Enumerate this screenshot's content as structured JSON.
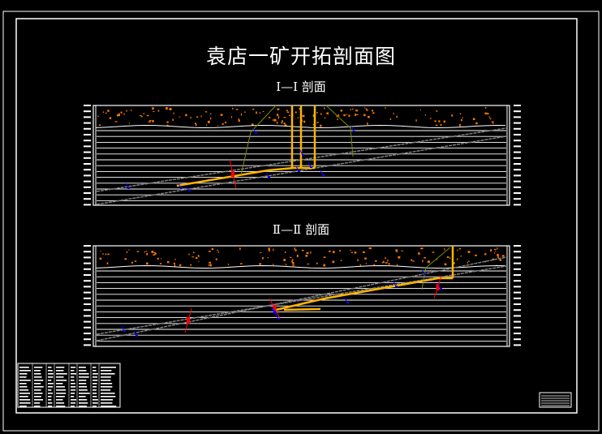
{
  "drawing": {
    "title": "袁店一矿开拓剖面图",
    "sections": [
      {
        "label": "Ⅰ—Ⅰ 剖面"
      },
      {
        "label": "Ⅱ—Ⅱ 剖面"
      }
    ]
  },
  "colors": {
    "background": "#000000",
    "frame": "#ffffff",
    "roadway": "#ffb400",
    "borehole": "#0000ff",
    "fault": "#ff0000",
    "coal_seam": "#808080",
    "boundary": "#7a8a00",
    "overburden": "#ff7a00"
  }
}
